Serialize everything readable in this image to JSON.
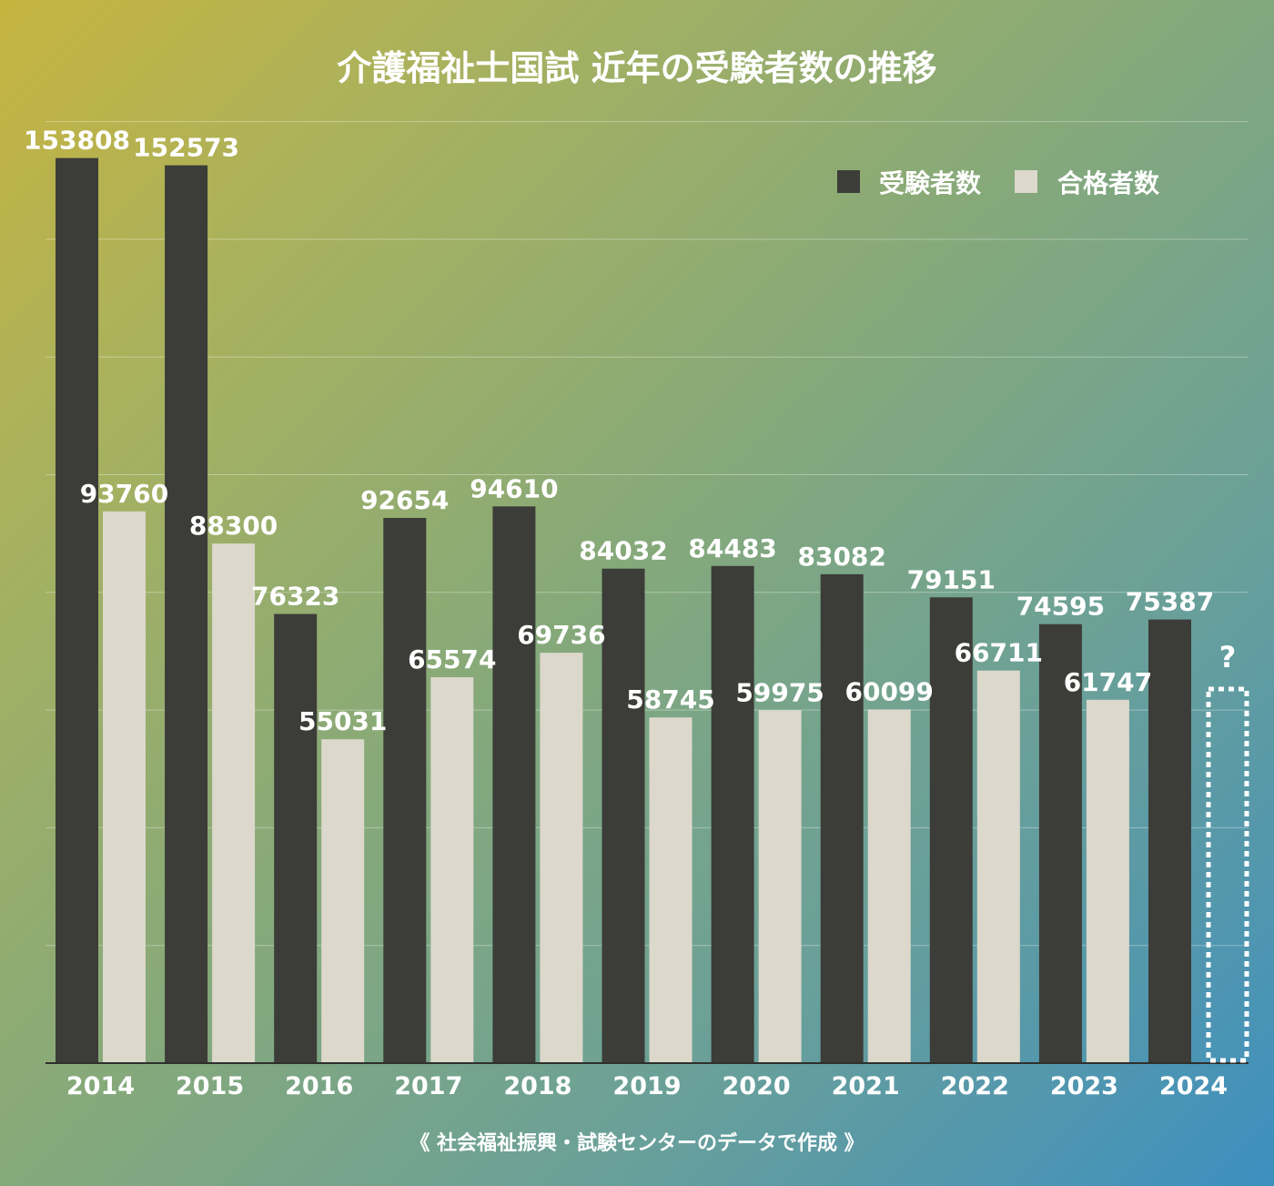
{
  "chart_data": {
    "type": "bar",
    "title": "介護福祉士国試 近年の受験者数の推移",
    "categories": [
      "2014",
      "2015",
      "2016",
      "2017",
      "2018",
      "2019",
      "2020",
      "2021",
      "2022",
      "2023",
      "2024"
    ],
    "series": [
      {
        "name": "受験者数",
        "color": "#3c3c38",
        "values": [
          153808,
          152573,
          76323,
          92654,
          94610,
          84032,
          84483,
          83082,
          79151,
          74595,
          75387
        ]
      },
      {
        "name": "合格者数",
        "color": "#dcd8cc",
        "values": [
          93760,
          88300,
          55031,
          65574,
          69736,
          58745,
          59975,
          60099,
          66711,
          61747,
          null
        ]
      }
    ],
    "ylim": [
      0,
      160000
    ],
    "grid": true,
    "legend_position": "top-right",
    "unknown_marker": {
      "category": "2024",
      "series": "合格者数",
      "label": "?"
    },
    "source_note": "《 社会福祉振興・試験センターのデータで作成 》"
  }
}
